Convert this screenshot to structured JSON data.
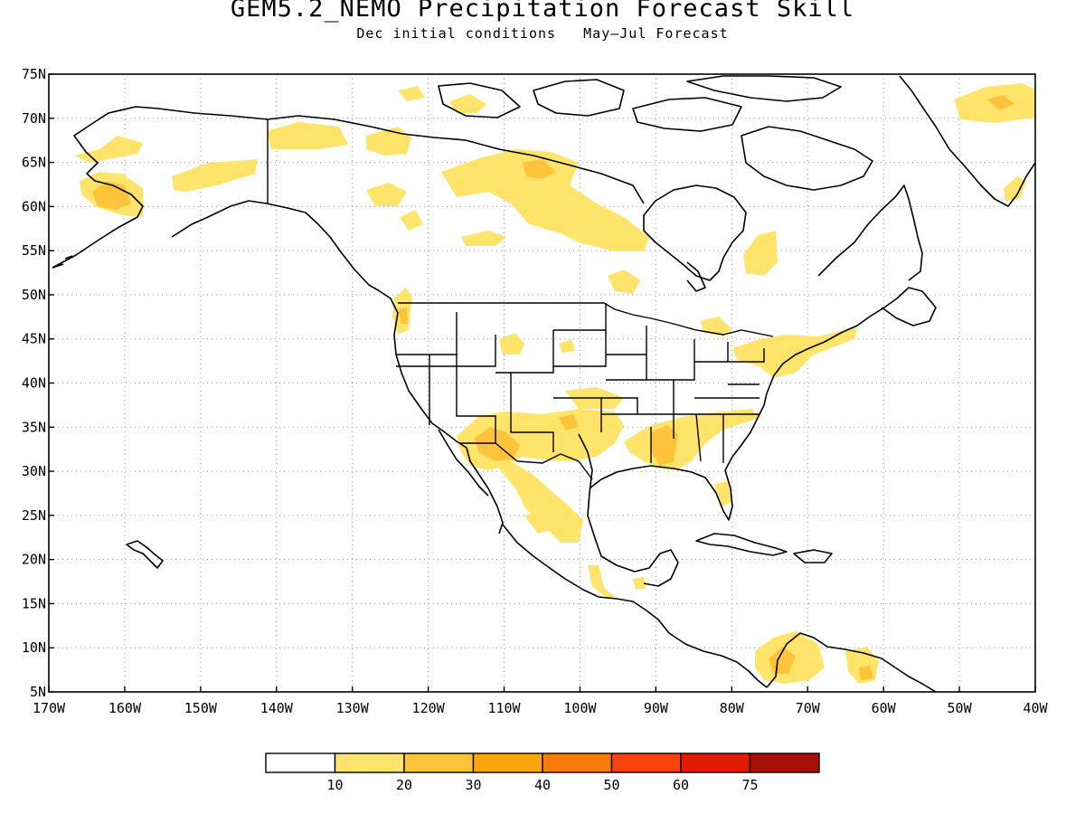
{
  "title": "GEM5.2_NEMO Precipitation Forecast Skill",
  "subtitle_init": "Dec initial conditions",
  "subtitle_fcst": "May–Jul Forecast",
  "axes": {
    "lat_labels": [
      "75N",
      "70N",
      "65N",
      "60N",
      "55N",
      "50N",
      "45N",
      "40N",
      "35N",
      "30N",
      "25N",
      "20N",
      "15N",
      "10N",
      "5N"
    ],
    "lon_labels": [
      "170W",
      "160W",
      "150W",
      "140W",
      "130W",
      "120W",
      "110W",
      "100W",
      "90W",
      "80W",
      "70W",
      "60W",
      "50W",
      "40W"
    ],
    "lat_range": [
      5,
      75
    ],
    "lon_range": [
      -170,
      -40
    ],
    "grid": "dotted"
  },
  "legend": {
    "labels": [
      "10",
      "20",
      "30",
      "40",
      "50",
      "60",
      "75"
    ],
    "colors": [
      "#ffffff",
      "#ffe46b",
      "#fdc33b",
      "#fda40f",
      "#fa7a0a",
      "#f7420a",
      "#e01c00",
      "#a80f07"
    ]
  },
  "colors": {
    "level1": "#ffe46b",
    "level2": "#fdc33b",
    "coastline": "#000000"
  }
}
